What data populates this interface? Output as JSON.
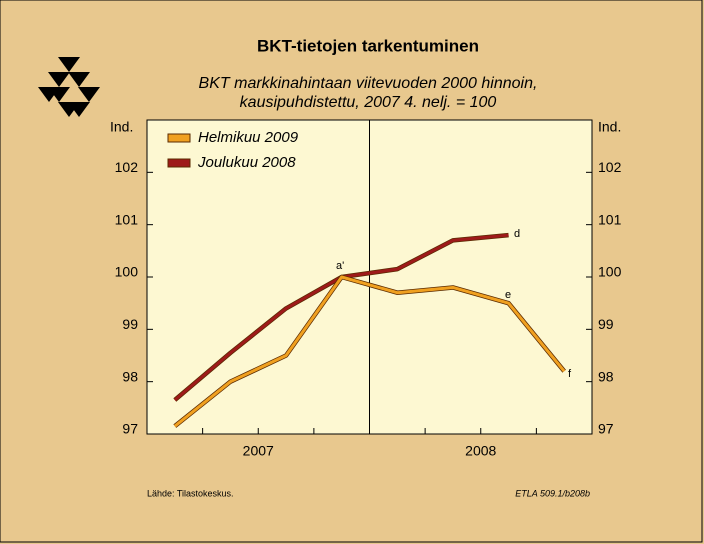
{
  "chart_data": {
    "type": "line",
    "title": "BKT-tietojen tarkentuminen",
    "subtitle": [
      "BKT markkinahintaan viitevuoden 2000 hinnoin,",
      "kausipuhdistettu, 2007 4. nelj. = 100"
    ],
    "y_label": "Ind.",
    "categories": [
      null,
      null,
      null,
      null,
      null,
      null,
      null,
      null
    ],
    "x_groups": [
      "2007",
      "2008"
    ],
    "series": [
      {
        "name": "Helmikuu 2009",
        "color": "#f0a020",
        "values": [
          97.15,
          98.0,
          98.5,
          100.0,
          99.7,
          99.8,
          99.5,
          98.2
        ]
      },
      {
        "name": "Joulukuu 2008",
        "color": "#9e1a1a",
        "values": [
          97.65,
          98.55,
          99.4,
          100.0,
          100.15,
          100.7,
          100.8,
          null
        ]
      }
    ],
    "annotations": [
      "a'",
      "d",
      "e",
      "f"
    ],
    "ylim": [
      97,
      103
    ],
    "yticks": [
      97,
      98,
      99,
      100,
      101,
      102
    ],
    "source": "Lähde:   Tilastokeskus.",
    "code": "ETLA 509.1/b208b"
  }
}
